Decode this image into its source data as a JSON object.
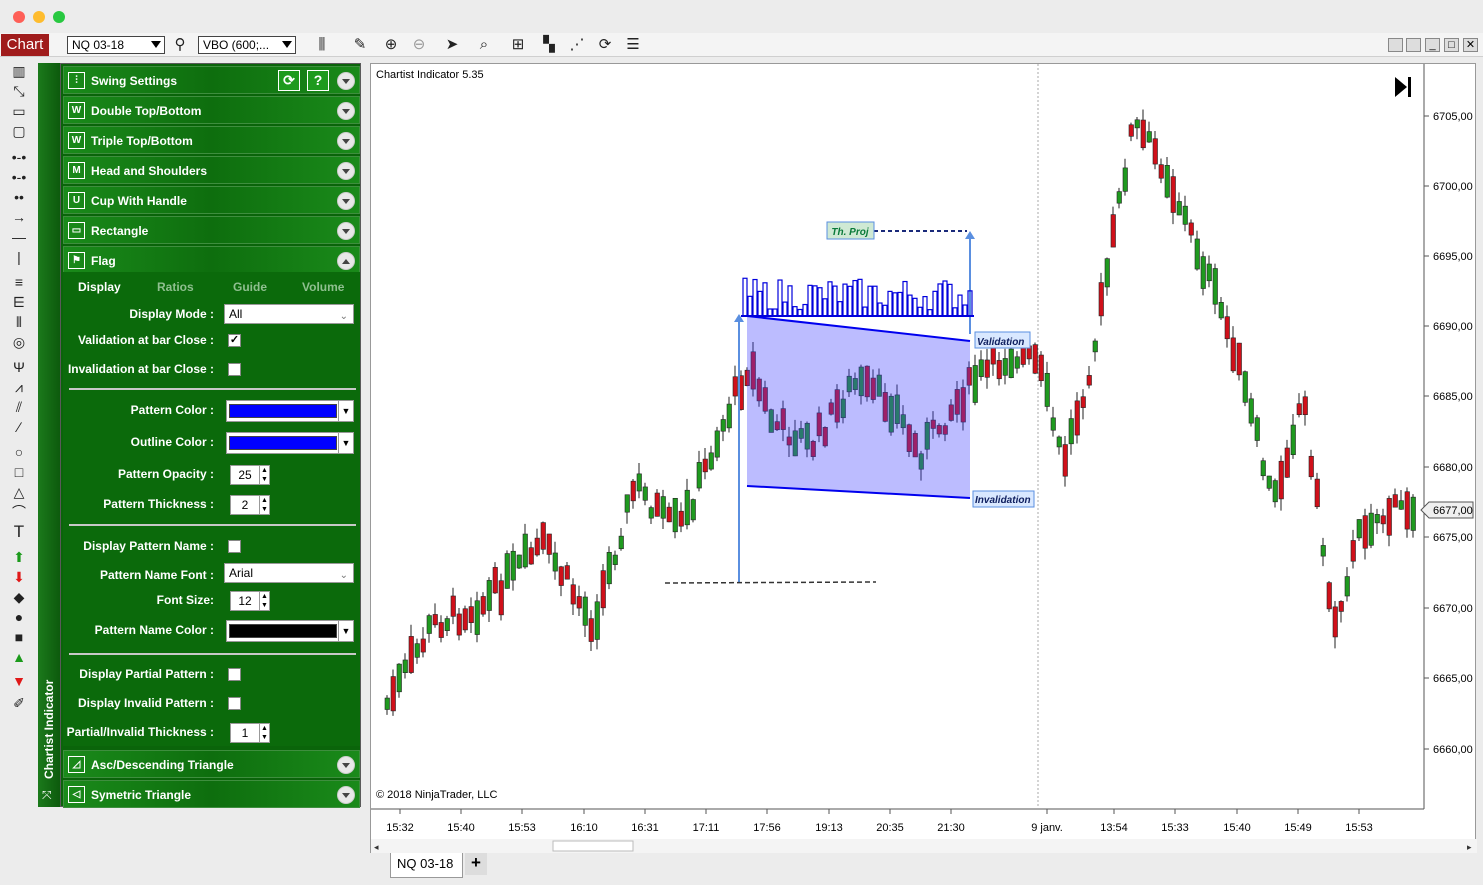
{
  "toolbar": {
    "chart_tab": "Chart",
    "instrument": "NQ 03-18",
    "indicator_select": "VBO (600;..."
  },
  "panel": {
    "vertical_label": "Chartist Indicator",
    "sections": [
      {
        "label": "Swing Settings",
        "icon": "sliders-icon"
      },
      {
        "label": "Double Top/Bottom",
        "icon": "double-top-icon"
      },
      {
        "label": "Triple Top/Bottom",
        "icon": "triple-top-icon"
      },
      {
        "label": "Head and Shoulders",
        "icon": "head-shoulders-icon"
      },
      {
        "label": "Cup With Handle",
        "icon": "cup-handle-icon"
      },
      {
        "label": "Rectangle",
        "icon": "rectangle-pattern-icon"
      },
      {
        "label": "Flag",
        "icon": "flag-pattern-icon"
      },
      {
        "label": "Asc/Descending Triangle",
        "icon": "asc-triangle-icon"
      },
      {
        "label": "Symetric Triangle",
        "icon": "sym-triangle-icon"
      }
    ],
    "swing_help": "?",
    "flag": {
      "tabs": [
        "Display",
        "Ratios",
        "Guide",
        "Volume"
      ],
      "display_mode_label": "Display Mode :",
      "display_mode_value": "All",
      "validation_label": "Validation at bar Close :",
      "validation_checked": "✓",
      "invalidation_label": "Invalidation at bar Close :",
      "pattern_color_label": "Pattern Color :",
      "pattern_color": "#0000ff",
      "outline_color_label": "Outline Color :",
      "outline_color": "#0000ff",
      "opacity_label": "Pattern Opacity :",
      "opacity_value": "25",
      "thickness_label": "Pattern Thickness :",
      "thickness_value": "2",
      "display_name_label": "Display Pattern Name :",
      "name_font_label": "Pattern Name Font :",
      "name_font_value": "Arial",
      "font_size_label": "Font Size:",
      "font_size_value": "12",
      "name_color_label": "Pattern Name Color :",
      "name_color": "#000000",
      "partial_label": "Display Partial Pattern :",
      "invalid_label": "Display Invalid Pattern :",
      "partial_thickness_label": "Partial/Invalid Thickness :",
      "partial_thickness_value": "1"
    }
  },
  "chart": {
    "title": "Chartist Indicator 5.35",
    "copyright": "© 2018 NinjaTrader, LLC",
    "price_labels": [
      "6705,00",
      "6700,00",
      "6695,00",
      "6690,00",
      "6685,00",
      "6680,00",
      "6675,00",
      "6670,00",
      "6665,00",
      "6660,00"
    ],
    "current_price": "6677,00",
    "time_labels": [
      "15:32",
      "15:40",
      "15:53",
      "16:10",
      "16:31",
      "17:11",
      "17:56",
      "19:13",
      "20:35",
      "21:30",
      "9 janv.",
      "13:54",
      "15:33",
      "15:40",
      "15:49",
      "15:53"
    ],
    "annotation_proj": "Th. Proj",
    "annotation_validation": "Validation",
    "annotation_invalidation": "Invalidation",
    "up_color": "#1f9a1f",
    "down_color": "#d0101a"
  },
  "bottom_tabs": {
    "active": "NQ 03-18",
    "add": "+"
  }
}
